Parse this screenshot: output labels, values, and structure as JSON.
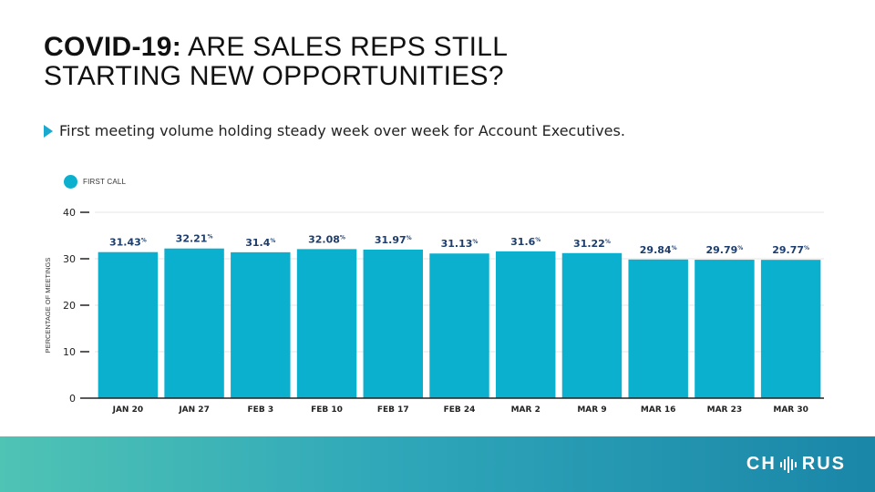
{
  "title": {
    "strong": "COVID-19:",
    "line1_rest": " ARE SALES REPS STILL",
    "line2": "STARTING NEW OPPORTUNITIES?"
  },
  "subtitle": "First meeting volume holding steady week over week for Account Executives.",
  "colors": {
    "bar": "#0bb0cf",
    "label": "#1c3d6e",
    "accent": "#1aa9cf"
  },
  "chart_data": {
    "type": "bar",
    "title": "",
    "xlabel": "",
    "ylabel": "PERCENTAGE OF MEETINGS",
    "ylim": [
      0,
      40
    ],
    "yticks": [
      0,
      10,
      20,
      30,
      40
    ],
    "grid": true,
    "legend_position": "top-left",
    "categories": [
      "JAN 20",
      "JAN 27",
      "FEB 3",
      "FEB 10",
      "FEB 17",
      "FEB 24",
      "MAR 2",
      "MAR 9",
      "MAR 16",
      "MAR 23",
      "MAR 30"
    ],
    "series": [
      {
        "name": "FIRST CALL",
        "values": [
          31.43,
          32.21,
          31.4,
          32.08,
          31.97,
          31.13,
          31.6,
          31.22,
          29.84,
          29.79,
          29.77
        ]
      }
    ],
    "value_suffix": "%"
  },
  "logo": {
    "left": "CH",
    "right": "RUS"
  }
}
